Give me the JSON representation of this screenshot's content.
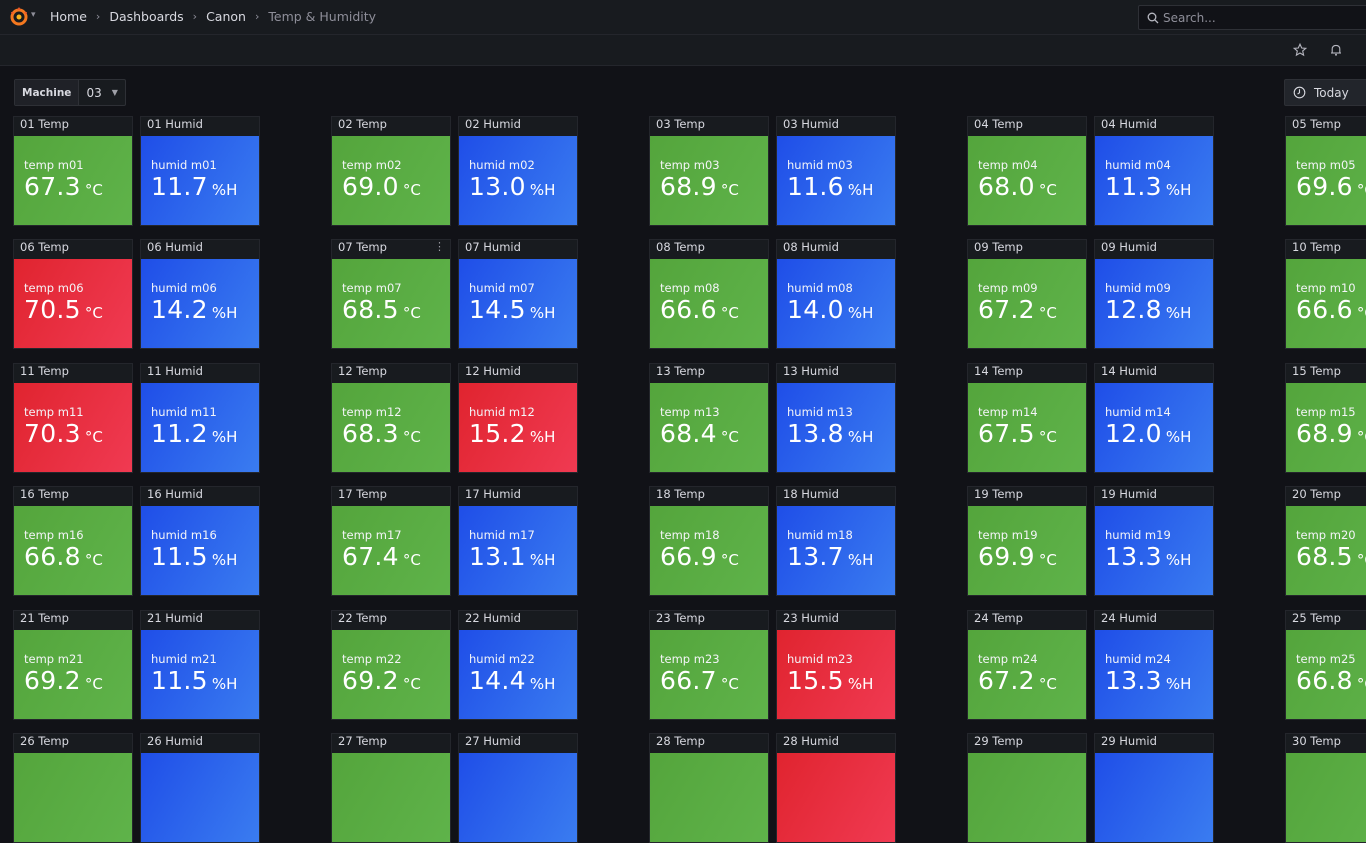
{
  "nav": {
    "breadcrumb": [
      "Home",
      "Dashboards",
      "Canon",
      "Temp & Humidity"
    ],
    "search_placeholder": "Search..."
  },
  "variables": {
    "machine_label": "Machine",
    "machine_value": "03"
  },
  "time_range": "Today",
  "colors": {
    "ok": "#56a64b",
    "humid": "#1f60c4",
    "alert": "#e02f44"
  },
  "machines": [
    {
      "id": "01",
      "temp": {
        "title": "01 Temp",
        "name": "temp m01",
        "value": "67.3",
        "unit": "°C",
        "status": "green"
      },
      "humid": {
        "title": "01 Humid",
        "name": "humid m01",
        "value": "11.7",
        "unit": "%H",
        "status": "blue"
      }
    },
    {
      "id": "02",
      "temp": {
        "title": "02 Temp",
        "name": "temp m02",
        "value": "69.0",
        "unit": "°C",
        "status": "green"
      },
      "humid": {
        "title": "02 Humid",
        "name": "humid m02",
        "value": "13.0",
        "unit": "%H",
        "status": "blue"
      }
    },
    {
      "id": "03",
      "temp": {
        "title": "03 Temp",
        "name": "temp m03",
        "value": "68.9",
        "unit": "°C",
        "status": "green"
      },
      "humid": {
        "title": "03 Humid",
        "name": "humid m03",
        "value": "11.6",
        "unit": "%H",
        "status": "blue"
      }
    },
    {
      "id": "04",
      "temp": {
        "title": "04 Temp",
        "name": "temp m04",
        "value": "68.0",
        "unit": "°C",
        "status": "green"
      },
      "humid": {
        "title": "04 Humid",
        "name": "humid m04",
        "value": "11.3",
        "unit": "%H",
        "status": "blue"
      }
    },
    {
      "id": "05",
      "temp": {
        "title": "05 Temp",
        "name": "temp m05",
        "value": "69.6",
        "unit": "°C",
        "status": "green"
      },
      "humid": null
    },
    {
      "id": "06",
      "temp": {
        "title": "06 Temp",
        "name": "temp m06",
        "value": "70.5",
        "unit": "°C",
        "status": "red"
      },
      "humid": {
        "title": "06 Humid",
        "name": "humid m06",
        "value": "14.2",
        "unit": "%H",
        "status": "blue"
      }
    },
    {
      "id": "07",
      "temp": {
        "title": "07 Temp",
        "name": "temp m07",
        "value": "68.5",
        "unit": "°C",
        "status": "green"
      },
      "humid": {
        "title": "07 Humid",
        "name": "humid m07",
        "value": "14.5",
        "unit": "%H",
        "status": "blue"
      }
    },
    {
      "id": "08",
      "temp": {
        "title": "08 Temp",
        "name": "temp m08",
        "value": "66.6",
        "unit": "°C",
        "status": "green"
      },
      "humid": {
        "title": "08 Humid",
        "name": "humid m08",
        "value": "14.0",
        "unit": "%H",
        "status": "blue"
      }
    },
    {
      "id": "09",
      "temp": {
        "title": "09 Temp",
        "name": "temp m09",
        "value": "67.2",
        "unit": "°C",
        "status": "green"
      },
      "humid": {
        "title": "09 Humid",
        "name": "humid m09",
        "value": "12.8",
        "unit": "%H",
        "status": "blue"
      }
    },
    {
      "id": "10",
      "temp": {
        "title": "10 Temp",
        "name": "temp m10",
        "value": "66.6",
        "unit": "°C",
        "status": "green"
      },
      "humid": null
    },
    {
      "id": "11",
      "temp": {
        "title": "11 Temp",
        "name": "temp m11",
        "value": "70.3",
        "unit": "°C",
        "status": "red"
      },
      "humid": {
        "title": "11 Humid",
        "name": "humid m11",
        "value": "11.2",
        "unit": "%H",
        "status": "blue"
      }
    },
    {
      "id": "12",
      "temp": {
        "title": "12 Temp",
        "name": "temp m12",
        "value": "68.3",
        "unit": "°C",
        "status": "green"
      },
      "humid": {
        "title": "12 Humid",
        "name": "humid m12",
        "value": "15.2",
        "unit": "%H",
        "status": "red"
      }
    },
    {
      "id": "13",
      "temp": {
        "title": "13 Temp",
        "name": "temp m13",
        "value": "68.4",
        "unit": "°C",
        "status": "green"
      },
      "humid": {
        "title": "13 Humid",
        "name": "humid m13",
        "value": "13.8",
        "unit": "%H",
        "status": "blue"
      }
    },
    {
      "id": "14",
      "temp": {
        "title": "14 Temp",
        "name": "temp m14",
        "value": "67.5",
        "unit": "°C",
        "status": "green"
      },
      "humid": {
        "title": "14 Humid",
        "name": "humid m14",
        "value": "12.0",
        "unit": "%H",
        "status": "blue"
      }
    },
    {
      "id": "15",
      "temp": {
        "title": "15 Temp",
        "name": "temp m15",
        "value": "68.9",
        "unit": "°C",
        "status": "green"
      },
      "humid": null
    },
    {
      "id": "16",
      "temp": {
        "title": "16 Temp",
        "name": "temp m16",
        "value": "66.8",
        "unit": "°C",
        "status": "green"
      },
      "humid": {
        "title": "16 Humid",
        "name": "humid m16",
        "value": "11.5",
        "unit": "%H",
        "status": "blue"
      }
    },
    {
      "id": "17",
      "temp": {
        "title": "17 Temp",
        "name": "temp m17",
        "value": "67.4",
        "unit": "°C",
        "status": "green"
      },
      "humid": {
        "title": "17 Humid",
        "name": "humid m17",
        "value": "13.1",
        "unit": "%H",
        "status": "blue"
      }
    },
    {
      "id": "18",
      "temp": {
        "title": "18 Temp",
        "name": "temp m18",
        "value": "66.9",
        "unit": "°C",
        "status": "green"
      },
      "humid": {
        "title": "18 Humid",
        "name": "humid m18",
        "value": "13.7",
        "unit": "%H",
        "status": "blue"
      }
    },
    {
      "id": "19",
      "temp": {
        "title": "19 Temp",
        "name": "temp m19",
        "value": "69.9",
        "unit": "°C",
        "status": "green"
      },
      "humid": {
        "title": "19 Humid",
        "name": "humid m19",
        "value": "13.3",
        "unit": "%H",
        "status": "blue"
      }
    },
    {
      "id": "20",
      "temp": {
        "title": "20 Temp",
        "name": "temp m20",
        "value": "68.5",
        "unit": "°C",
        "status": "green"
      },
      "humid": null
    },
    {
      "id": "21",
      "temp": {
        "title": "21 Temp",
        "name": "temp m21",
        "value": "69.2",
        "unit": "°C",
        "status": "green"
      },
      "humid": {
        "title": "21 Humid",
        "name": "humid m21",
        "value": "11.5",
        "unit": "%H",
        "status": "blue"
      }
    },
    {
      "id": "22",
      "temp": {
        "title": "22 Temp",
        "name": "temp m22",
        "value": "69.2",
        "unit": "°C",
        "status": "green"
      },
      "humid": {
        "title": "22 Humid",
        "name": "humid m22",
        "value": "14.4",
        "unit": "%H",
        "status": "blue"
      }
    },
    {
      "id": "23",
      "temp": {
        "title": "23 Temp",
        "name": "temp m23",
        "value": "66.7",
        "unit": "°C",
        "status": "green"
      },
      "humid": {
        "title": "23 Humid",
        "name": "humid m23",
        "value": "15.5",
        "unit": "%H",
        "status": "red"
      }
    },
    {
      "id": "24",
      "temp": {
        "title": "24 Temp",
        "name": "temp m24",
        "value": "67.2",
        "unit": "°C",
        "status": "green"
      },
      "humid": {
        "title": "24 Humid",
        "name": "humid m24",
        "value": "13.3",
        "unit": "%H",
        "status": "blue"
      }
    },
    {
      "id": "25",
      "temp": {
        "title": "25 Temp",
        "name": "temp m25",
        "value": "66.8",
        "unit": "°C",
        "status": "green"
      },
      "humid": null
    },
    {
      "id": "26",
      "temp": {
        "title": "26 Temp",
        "name": "",
        "value": "",
        "unit": "",
        "status": "green"
      },
      "humid": {
        "title": "26 Humid",
        "name": "",
        "value": "",
        "unit": "",
        "status": "blue"
      }
    },
    {
      "id": "27",
      "temp": {
        "title": "27 Temp",
        "name": "",
        "value": "",
        "unit": "",
        "status": "green"
      },
      "humid": {
        "title": "27 Humid",
        "name": "",
        "value": "",
        "unit": "",
        "status": "blue"
      }
    },
    {
      "id": "28",
      "temp": {
        "title": "28 Temp",
        "name": "",
        "value": "",
        "unit": "",
        "status": "green"
      },
      "humid": {
        "title": "28 Humid",
        "name": "",
        "value": "",
        "unit": "",
        "status": "red"
      }
    },
    {
      "id": "29",
      "temp": {
        "title": "29 Temp",
        "name": "",
        "value": "",
        "unit": "",
        "status": "green"
      },
      "humid": {
        "title": "29 Humid",
        "name": "",
        "value": "",
        "unit": "",
        "status": "blue"
      }
    },
    {
      "id": "30",
      "temp": {
        "title": "30 Temp",
        "name": "",
        "value": "",
        "unit": "",
        "status": "green"
      },
      "humid": null
    }
  ]
}
